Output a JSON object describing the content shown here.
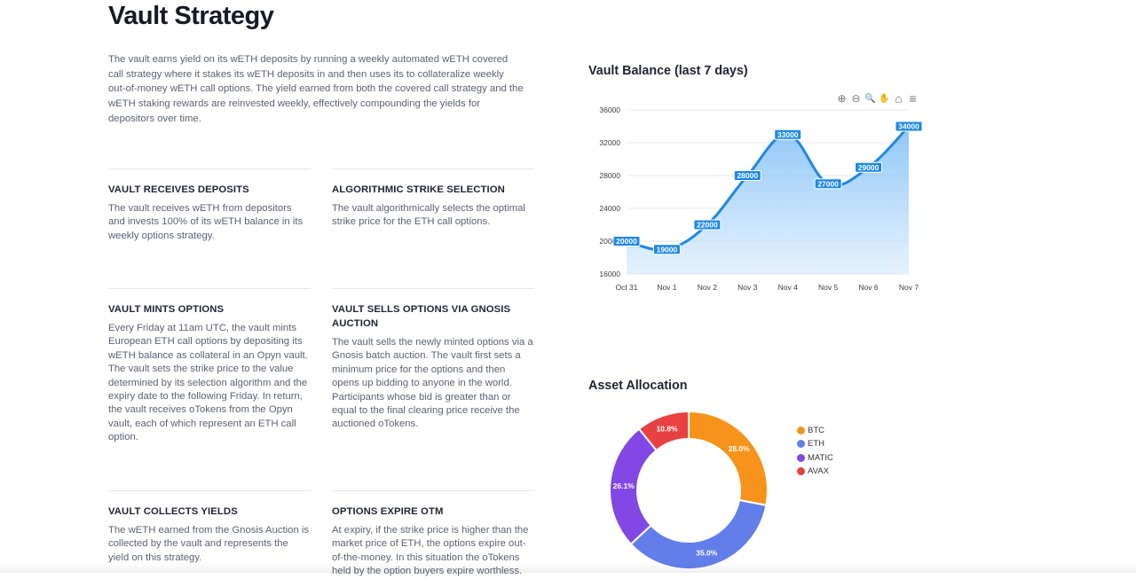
{
  "page": {
    "title": "Vault Strategy",
    "intro": "The vault earns yield on its wETH deposits by running a weekly automated wETH covered call strategy where it stakes its wETH deposits in and then uses its to collateralize weekly out-of-money wETH call options. The yield earned from both the covered call strategy and the wETH staking rewards are reinvested weekly, effectively compounding the yields for depositors over time."
  },
  "steps": [
    {
      "title": "VAULT RECEIVES DEPOSITS",
      "text": "The vault receives wETH from depositors and invests 100% of its wETH balance in its weekly options strategy."
    },
    {
      "title": "ALGORITHMIC STRIKE SELECTION",
      "text": "The vault algorithmically selects the optimal strike price for the ETH call options."
    },
    {
      "title": "VAULT MINTS OPTIONS",
      "text": "Every Friday at 11am UTC, the vault mints European ETH call options by depositing its wETH balance as collateral in an Opyn vault. The vault sets the strike price to the value determined by its selection algorithm and the expiry date to the following Friday. In return, the vault receives oTokens from the Opyn vault, each of which represent an ETH call option."
    },
    {
      "title": "VAULT SELLS OPTIONS VIA GNOSIS AUCTION",
      "text": "The vault sells the newly minted options via a Gnosis batch auction. The vault first sets a minimum price for the options and then opens up bidding to anyone in the world. Participants whose bid is greater than or equal to the final clearing price receive the auctioned oTokens."
    },
    {
      "title": "VAULT COLLECTS YIELDS",
      "text": "The wETH earned from the Gnosis Auction is collected by the vault and represents the yield on this strategy."
    },
    {
      "title": "OPTIONS EXPIRE OTM",
      "text": "At expiry, if the strike price is higher than the market price of ETH, the options expire out-of-the-money. In this situation the oTokens held by the option buyers expire worthless."
    }
  ],
  "toolbar": {
    "zoom_in": "⊕",
    "zoom_out": "⊖",
    "zoom_select": "🔍",
    "pan": "✋",
    "reset": "⌂",
    "menu": "≡"
  },
  "chart_data": [
    {
      "type": "area",
      "title": "Vault Balance (last 7 days)",
      "categories": [
        "Oct 31",
        "Nov 1",
        "Nov 2",
        "Nov 3",
        "Nov 4",
        "Nov 5",
        "Nov 6",
        "Nov 7"
      ],
      "values": [
        20000,
        19000,
        22000,
        28000,
        33000,
        27000,
        29000,
        34000
      ],
      "yticks": [
        16000,
        20000,
        24000,
        28000,
        32000,
        36000
      ],
      "ylim": [
        16000,
        36000
      ],
      "grid": true,
      "color": "#1e88e5"
    },
    {
      "type": "pie",
      "title": "Asset Allocation",
      "labels": [
        "BTC",
        "ETH",
        "MATIC",
        "AVAX"
      ],
      "values": [
        28.0,
        35.0,
        26.1,
        10.8
      ],
      "value_labels": [
        "28.0%",
        "35.0%",
        "26.1%",
        "10.8%"
      ],
      "colors": [
        "#f7931a",
        "#627eea",
        "#8247e5",
        "#e84142"
      ],
      "donut": true,
      "legend": "right"
    }
  ]
}
